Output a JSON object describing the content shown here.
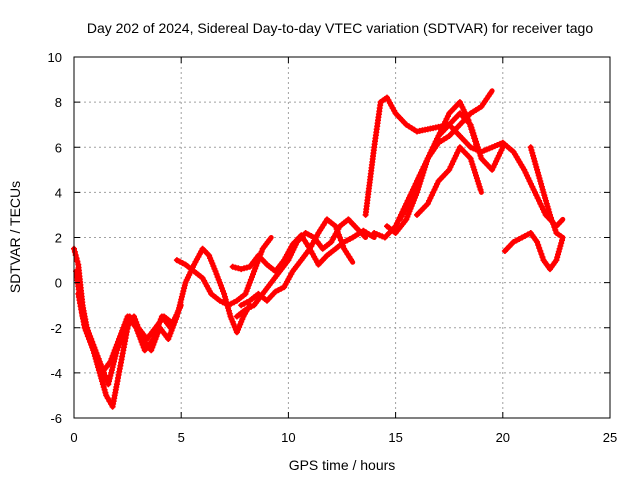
{
  "chart_data": {
    "type": "line",
    "title": "Day 202 of 2024, Sidereal Day-to-day VTEC variation (SDTVAR) for receiver tago",
    "xlabel": "GPS time / hours",
    "ylabel": "SDTVAR / TECUs",
    "xlim": [
      0,
      25
    ],
    "ylim": [
      -6,
      10
    ],
    "xticks": [
      0,
      5,
      10,
      15,
      20,
      25
    ],
    "yticks": [
      -6,
      -4,
      -2,
      0,
      2,
      4,
      6,
      8,
      10
    ],
    "grid": true,
    "marker": "plus",
    "color": "#ff0000",
    "series": [
      {
        "x": [
          0.0,
          0.2,
          0.4,
          0.6,
          0.9,
          1.2,
          1.5,
          1.8,
          2.0,
          2.3,
          2.6,
          3.0,
          3.4,
          3.8,
          4.2,
          4.6,
          5.0
        ],
        "y": [
          1.5,
          0.8,
          -1.0,
          -2.0,
          -3.0,
          -4.0,
          -5.0,
          -5.5,
          -4.5,
          -3.0,
          -1.5,
          -2.0,
          -2.5,
          -2.0,
          -1.5,
          -1.8,
          -1.0
        ]
      },
      {
        "x": [
          0.1,
          0.4,
          0.8,
          1.2,
          1.6,
          2.0,
          2.4,
          2.8,
          3.2,
          3.6,
          4.0,
          4.4,
          4.8
        ],
        "y": [
          0.5,
          -1.5,
          -2.5,
          -3.5,
          -4.5,
          -3.0,
          -2.0,
          -1.5,
          -2.5,
          -3.0,
          -2.0,
          -2.5,
          -1.5
        ]
      },
      {
        "x": [
          0.2,
          0.5,
          0.9,
          1.3,
          1.7,
          2.1,
          2.5,
          2.9,
          3.3,
          3.7,
          4.1,
          4.5,
          4.9
        ],
        "y": [
          -0.5,
          -2.0,
          -3.0,
          -4.0,
          -3.5,
          -2.5,
          -1.5,
          -2.0,
          -3.0,
          -2.5,
          -1.5,
          -2.0,
          -1.2
        ]
      },
      {
        "x": [
          4.8,
          5.2,
          5.6,
          6.0,
          6.3,
          6.6,
          7.0,
          7.3,
          7.6,
          7.9,
          8.2
        ],
        "y": [
          -1.5,
          0.0,
          0.8,
          1.5,
          1.2,
          0.5,
          -0.5,
          -1.5,
          -2.2,
          -1.5,
          -1.0
        ]
      },
      {
        "x": [
          4.8,
          5.2,
          5.6,
          6.0,
          6.4,
          6.8,
          7.2,
          7.6,
          8.0,
          8.4,
          8.8,
          9.2
        ],
        "y": [
          1.0,
          0.8,
          0.5,
          0.2,
          -0.5,
          -0.8,
          -1.0,
          -0.8,
          -0.5,
          0.5,
          1.5,
          2.0
        ]
      },
      {
        "x": [
          7.4,
          7.8,
          8.2,
          8.6,
          9.0,
          9.4,
          9.8,
          10.2,
          10.6,
          11.0,
          11.4,
          11.8,
          12.2,
          12.6,
          13.0,
          13.5,
          14.0
        ],
        "y": [
          0.7,
          0.6,
          0.7,
          1.2,
          0.8,
          0.5,
          1.0,
          1.7,
          2.1,
          1.5,
          0.8,
          1.2,
          1.5,
          1.8,
          2.0,
          2.3,
          2.0
        ]
      },
      {
        "x": [
          7.8,
          8.2,
          8.6,
          9.0,
          9.4,
          9.8,
          10.2,
          10.6,
          11.0,
          11.4,
          11.8,
          12.2,
          12.6,
          13.0
        ],
        "y": [
          -1.0,
          -0.8,
          -0.5,
          -0.8,
          -0.4,
          -0.2,
          0.5,
          1.0,
          1.5,
          2.2,
          2.8,
          2.5,
          1.5,
          0.9
        ]
      },
      {
        "x": [
          7.6,
          8.0,
          8.4,
          8.8,
          9.2,
          9.6,
          10.0,
          10.4,
          10.8,
          11.2,
          11.6,
          12.0,
          12.4,
          12.8,
          13.2,
          13.6
        ],
        "y": [
          -1.5,
          -1.2,
          -1.0,
          -0.5,
          0.0,
          0.5,
          1.0,
          1.8,
          2.2,
          2.0,
          1.5,
          1.8,
          2.5,
          2.8,
          2.4,
          2.0
        ]
      },
      {
        "x": [
          13.6,
          14.0,
          14.3,
          14.6,
          15.0,
          15.5,
          16.0,
          16.5,
          17.0,
          17.5,
          18.0,
          18.5,
          19.0,
          19.5
        ],
        "y": [
          3.0,
          6.0,
          8.0,
          8.2,
          7.5,
          7.0,
          6.7,
          6.8,
          6.9,
          7.0,
          6.5,
          6.0,
          5.8,
          6.0
        ]
      },
      {
        "x": [
          14.0,
          14.5,
          15.0,
          15.5,
          16.0,
          16.5,
          17.0,
          17.5,
          18.0,
          18.5,
          19.0,
          19.5,
          20.0
        ],
        "y": [
          2.2,
          2.0,
          2.5,
          3.5,
          4.5,
          5.5,
          6.5,
          7.0,
          7.5,
          7.0,
          5.5,
          5.0,
          6.0
        ]
      },
      {
        "x": [
          14.6,
          15.0,
          15.5,
          16.0,
          16.5,
          17.0,
          17.5,
          18.0,
          18.5,
          19.0,
          19.5
        ],
        "y": [
          2.5,
          2.2,
          2.8,
          4.0,
          5.5,
          6.2,
          6.5,
          7.0,
          7.5,
          7.8,
          8.5
        ]
      },
      {
        "x": [
          15.2,
          15.6,
          16.0,
          16.5,
          17.0,
          17.5,
          18.0,
          18.4,
          18.8
        ],
        "y": [
          2.8,
          3.5,
          4.5,
          5.5,
          6.5,
          7.5,
          8.0,
          7.2,
          6.0
        ]
      },
      {
        "x": [
          16.0,
          16.5,
          17.0,
          17.5,
          18.0,
          18.5,
          19.0
        ],
        "y": [
          3.0,
          3.5,
          4.5,
          5.0,
          6.0,
          5.5,
          4.0
        ]
      },
      {
        "x": [
          19.5,
          20.0,
          20.5,
          21.0,
          21.5,
          22.0,
          22.5,
          22.8
        ],
        "y": [
          6.0,
          6.2,
          5.8,
          5.0,
          4.0,
          3.0,
          2.5,
          2.8
        ]
      },
      {
        "x": [
          21.3,
          21.6,
          21.9,
          22.2,
          22.5,
          22.8
        ],
        "y": [
          6.0,
          5.0,
          4.0,
          3.0,
          2.2,
          2.0
        ]
      },
      {
        "x": [
          20.1,
          20.5,
          20.9,
          21.3,
          21.6,
          21.9,
          22.2,
          22.5,
          22.8
        ],
        "y": [
          1.4,
          1.8,
          2.0,
          2.2,
          1.8,
          1.0,
          0.6,
          1.0,
          2.0
        ]
      }
    ]
  }
}
